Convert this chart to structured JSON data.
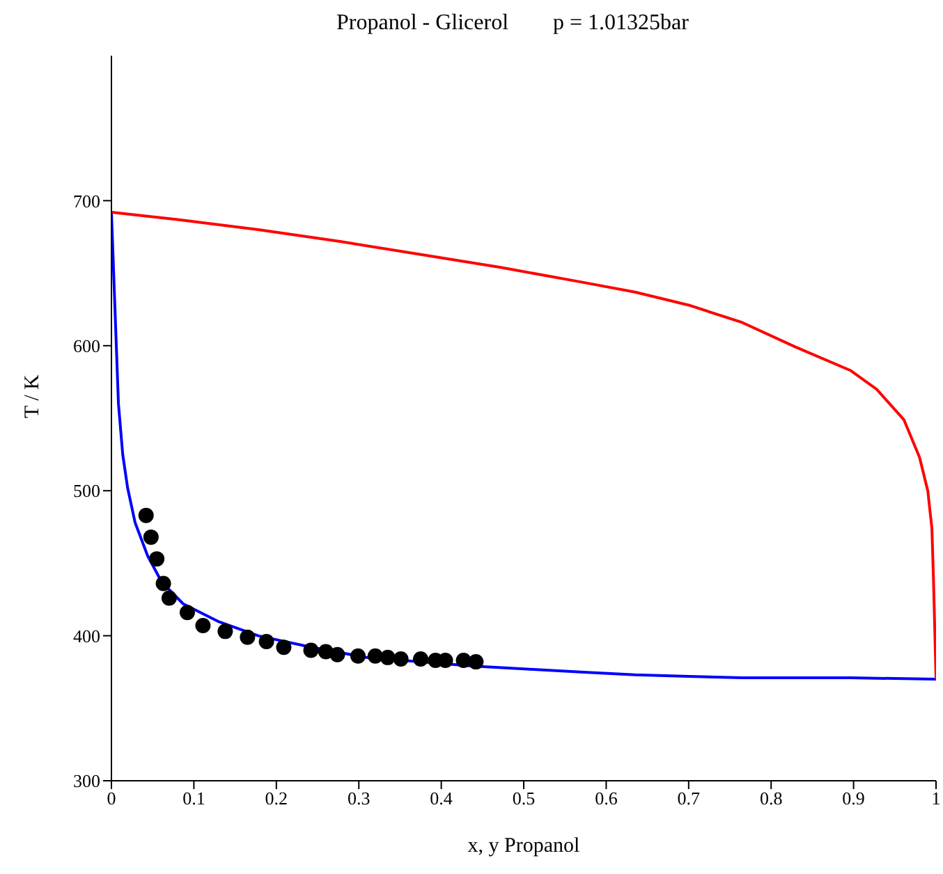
{
  "chart_data": {
    "type": "line",
    "title": "Propanol - Glicerol        p = 1.01325bar",
    "xlabel": "x, y Propanol",
    "ylabel": "T / K",
    "xlim": [
      0,
      1
    ],
    "xticks": [
      0,
      0.1,
      0.2,
      0.3,
      0.4,
      0.5,
      0.6,
      0.7,
      0.8,
      0.9,
      1
    ],
    "ylim": [
      300,
      800
    ],
    "yticks": [
      300,
      400,
      500,
      600,
      700
    ],
    "grid": false,
    "legend": false,
    "series": [
      {
        "color": "#0000ff",
        "marker": "none",
        "x": [
          0,
          0.0085,
          0.0137,
          0.0196,
          0.0287,
          0.044,
          0.061,
          0.087,
          0.129,
          0.178,
          0.243,
          0.309,
          0.374,
          0.439,
          0.504,
          0.569,
          0.635,
          0.7,
          0.765,
          0.896,
          1
        ],
        "values": [
          692,
          560,
          525,
          502,
          478,
          455,
          437,
          422,
          410,
          400,
          392,
          385,
          382,
          379,
          377,
          375,
          373,
          372,
          371,
          371,
          370
        ]
      },
      {
        "color": "#ff0000",
        "marker": "none",
        "x": [
          0,
          0.08,
          0.178,
          0.276,
          0.374,
          0.472,
          0.569,
          0.635,
          0.7,
          0.765,
          0.83,
          0.896,
          0.928,
          0.961,
          0.98,
          0.99,
          0.995,
          0.997,
          1
        ],
        "values": [
          692,
          687,
          680,
          672,
          663,
          654,
          644,
          637,
          628,
          616,
          599,
          583,
          570,
          549,
          523,
          500,
          474,
          437,
          370
        ]
      },
      {
        "type": "scatter",
        "color": "#000000",
        "marker": "circle",
        "x": [
          0.042,
          0.048,
          0.055,
          0.063,
          0.07,
          0.092,
          0.111,
          0.138,
          0.165,
          0.188,
          0.209,
          0.242,
          0.26,
          0.274,
          0.299,
          0.32,
          0.335,
          0.351,
          0.375,
          0.393,
          0.405,
          0.427,
          0.442
        ],
        "values": [
          483,
          468,
          453,
          436,
          426,
          416,
          407,
          403,
          399,
          396,
          392,
          390,
          389,
          387,
          386,
          386,
          385,
          384,
          384,
          383,
          383,
          383,
          382
        ]
      }
    ]
  }
}
